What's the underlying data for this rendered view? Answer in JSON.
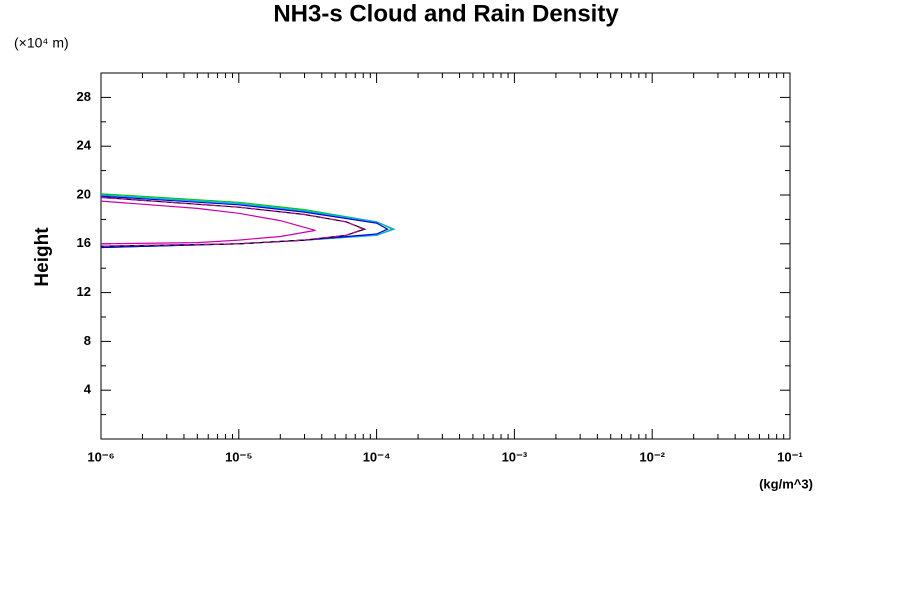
{
  "chart_data": {
    "type": "line",
    "title": "NH3-s Cloud and Rain Density",
    "y_unit": "(×10⁴ m)",
    "ylabel": "Height",
    "xlabel": "(kg/m^3)",
    "xscale": "log",
    "xlim": [
      1e-06,
      0.1
    ],
    "ylim": [
      0,
      30
    ],
    "xticks": [
      {
        "value": 1e-06,
        "label": "10⁻⁶"
      },
      {
        "value": 1e-05,
        "label": "10⁻⁵"
      },
      {
        "value": 0.0001,
        "label": "10⁻⁴"
      },
      {
        "value": 0.001,
        "label": "10⁻³"
      },
      {
        "value": 0.01,
        "label": "10⁻²"
      },
      {
        "value": 0.1,
        "label": "10⁻¹"
      }
    ],
    "yticks": [
      4,
      8,
      12,
      16,
      20,
      24,
      28
    ],
    "xminorticks": [
      2e-06,
      3e-06,
      4e-06,
      5e-06,
      6e-06,
      7e-06,
      8e-06,
      9e-06,
      2e-05,
      3e-05,
      4e-05,
      5e-05,
      6e-05,
      7e-05,
      8e-05,
      9e-05,
      0.0002,
      0.0003,
      0.0004,
      0.0005,
      0.0006,
      0.0007,
      0.0008,
      0.0009,
      0.002,
      0.003,
      0.004,
      0.005,
      0.006,
      0.007,
      0.008,
      0.009,
      0.02,
      0.03,
      0.04,
      0.05,
      0.06,
      0.07,
      0.08,
      0.09
    ],
    "yminorticks": [
      2,
      6,
      10,
      14,
      18,
      22,
      26
    ],
    "series": [
      {
        "color": "#00cc00",
        "x": [
          1e-06,
          1e-05,
          3e-05,
          0.0001,
          0.00013,
          0.0001,
          3e-05,
          1e-05,
          1e-06
        ],
        "y": [
          20.1,
          19.4,
          18.8,
          17.8,
          17.2,
          16.7,
          16.3,
          16.0,
          15.7
        ]
      },
      {
        "color": "#00aaff",
        "x": [
          1e-06,
          1e-05,
          3e-05,
          0.0001,
          0.000134,
          0.0001,
          3e-05,
          1e-05,
          1e-06
        ],
        "y": [
          20.0,
          19.3,
          18.7,
          17.8,
          17.2,
          16.7,
          16.3,
          16.0,
          15.7
        ]
      },
      {
        "color": "#0000cc",
        "x": [
          1e-06,
          1e-05,
          3e-05,
          0.0001,
          0.00012,
          0.0001,
          3e-05,
          1e-05,
          1e-06
        ],
        "y": [
          19.9,
          19.2,
          18.6,
          17.7,
          17.2,
          16.8,
          16.3,
          16.0,
          15.7
        ]
      },
      {
        "color": "#000000",
        "x": [
          1e-06,
          1e-05,
          3e-05,
          6e-05,
          8.2e-05,
          6e-05,
          3e-05,
          1e-05,
          1e-06
        ],
        "y": [
          19.8,
          19.0,
          18.4,
          17.8,
          17.2,
          16.7,
          16.3,
          16.0,
          15.8
        ]
      },
      {
        "color": "#cc00aa",
        "dashed": true,
        "x": [
          1e-06,
          1e-05,
          3e-05,
          6e-05,
          8e-05,
          6e-05,
          3e-05,
          1e-05,
          1e-06
        ],
        "y": [
          19.8,
          19.0,
          18.4,
          17.8,
          17.2,
          16.7,
          16.3,
          16.0,
          15.8
        ]
      },
      {
        "color": "#cc00aa",
        "x": [
          1e-06,
          5e-06,
          1e-05,
          2e-05,
          3.6e-05,
          2e-05,
          1e-05,
          5e-06,
          1e-06
        ],
        "y": [
          19.5,
          18.9,
          18.5,
          17.9,
          17.1,
          16.6,
          16.3,
          16.1,
          16.0
        ]
      }
    ]
  }
}
